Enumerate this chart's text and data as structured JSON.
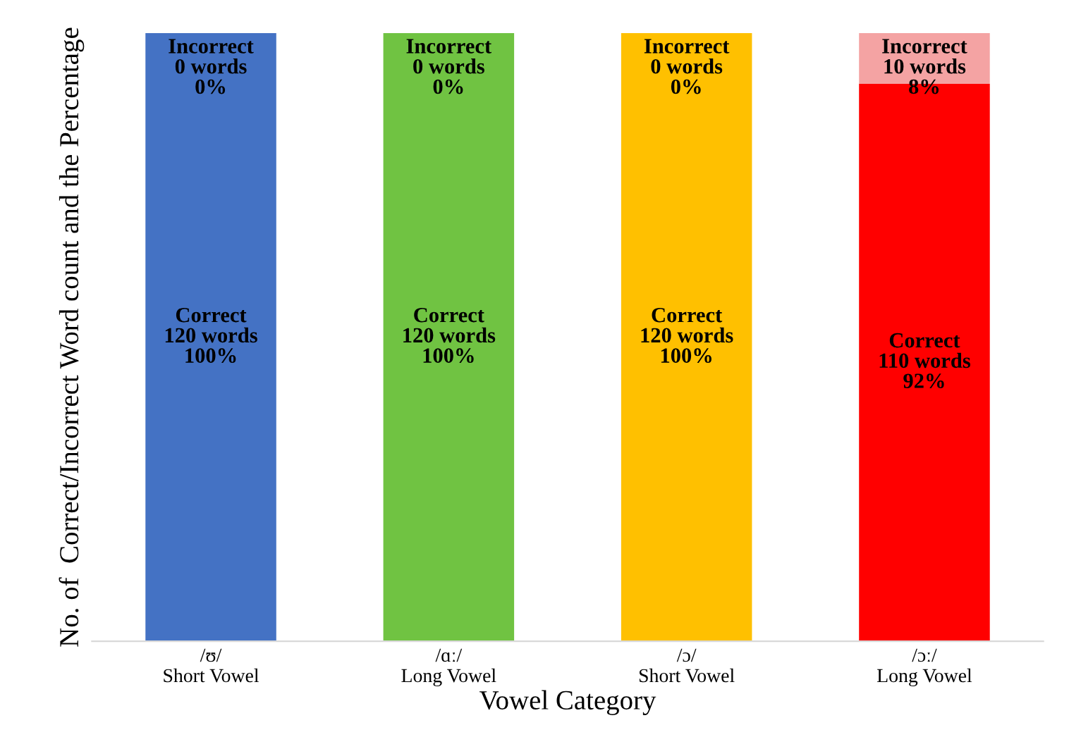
{
  "chart_data": {
    "type": "bar",
    "stacked": true,
    "xlabel": "Vowel Category",
    "ylabel": "No. of  Correct/Incorrect Word count and the Percentage",
    "categories": [
      "/ʊ/\nShort Vowel",
      "/ɑː/\nLong Vowel",
      "/ɔ/\nShort Vowel",
      "/ɔː/\nLong Vowel"
    ],
    "ylim": [
      0,
      120
    ],
    "tick_labels": "x",
    "grid": false,
    "legend": false,
    "series": [
      {
        "colors": [
          "#4472c4",
          "#70c342",
          "#ffc000",
          "#ff0000"
        ],
        "values": [
          120,
          120,
          120,
          110
        ],
        "value_labels": [
          "Correct\n120 words\n100%",
          "Correct\n120 words\n100%",
          "Correct\n120 words\n100%",
          "Correct\n110 words\n92%"
        ]
      },
      {
        "colors": [
          "#a9bde6",
          "#b6e29e",
          "#ffe08a",
          "#f4a3a3"
        ],
        "values": [
          0,
          0,
          0,
          10
        ],
        "value_labels": [
          "Incorrect\n0 words\n0%",
          "Incorrect\n0 words\n0%",
          "Incorrect\n0 words\n0%",
          "Incorrect\n10 words\n8%"
        ]
      }
    ]
  }
}
